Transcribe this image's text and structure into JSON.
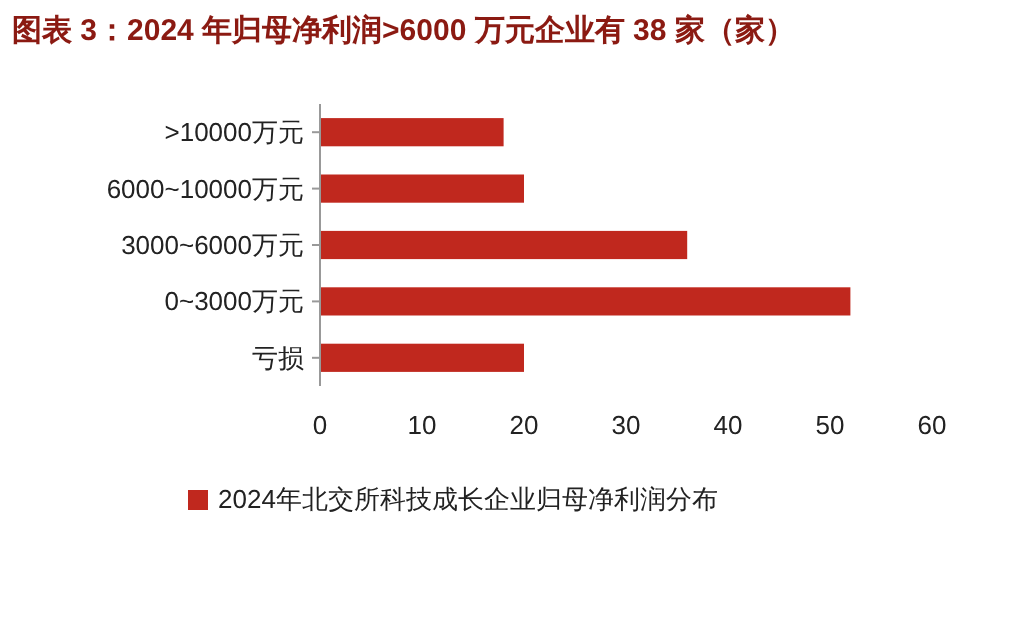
{
  "chart_data": {
    "type": "bar",
    "orientation": "horizontal",
    "title": "图表 3：2024 年归母净利润>6000 万元企业有 38 家（家）",
    "categories": [
      ">10000万元",
      "6000~10000万元",
      "3000~6000万元",
      "0~3000万元",
      "亏损"
    ],
    "series": [
      {
        "name": "2024年北交所科技成长企业归母净利润分布",
        "color": "#c0281e",
        "values": [
          18,
          20,
          36,
          52,
          20
        ]
      }
    ],
    "xlim": [
      0,
      60
    ],
    "xticks": [
      0,
      10,
      20,
      30,
      40,
      50,
      60
    ],
    "grid": false,
    "legend": "bottom"
  }
}
